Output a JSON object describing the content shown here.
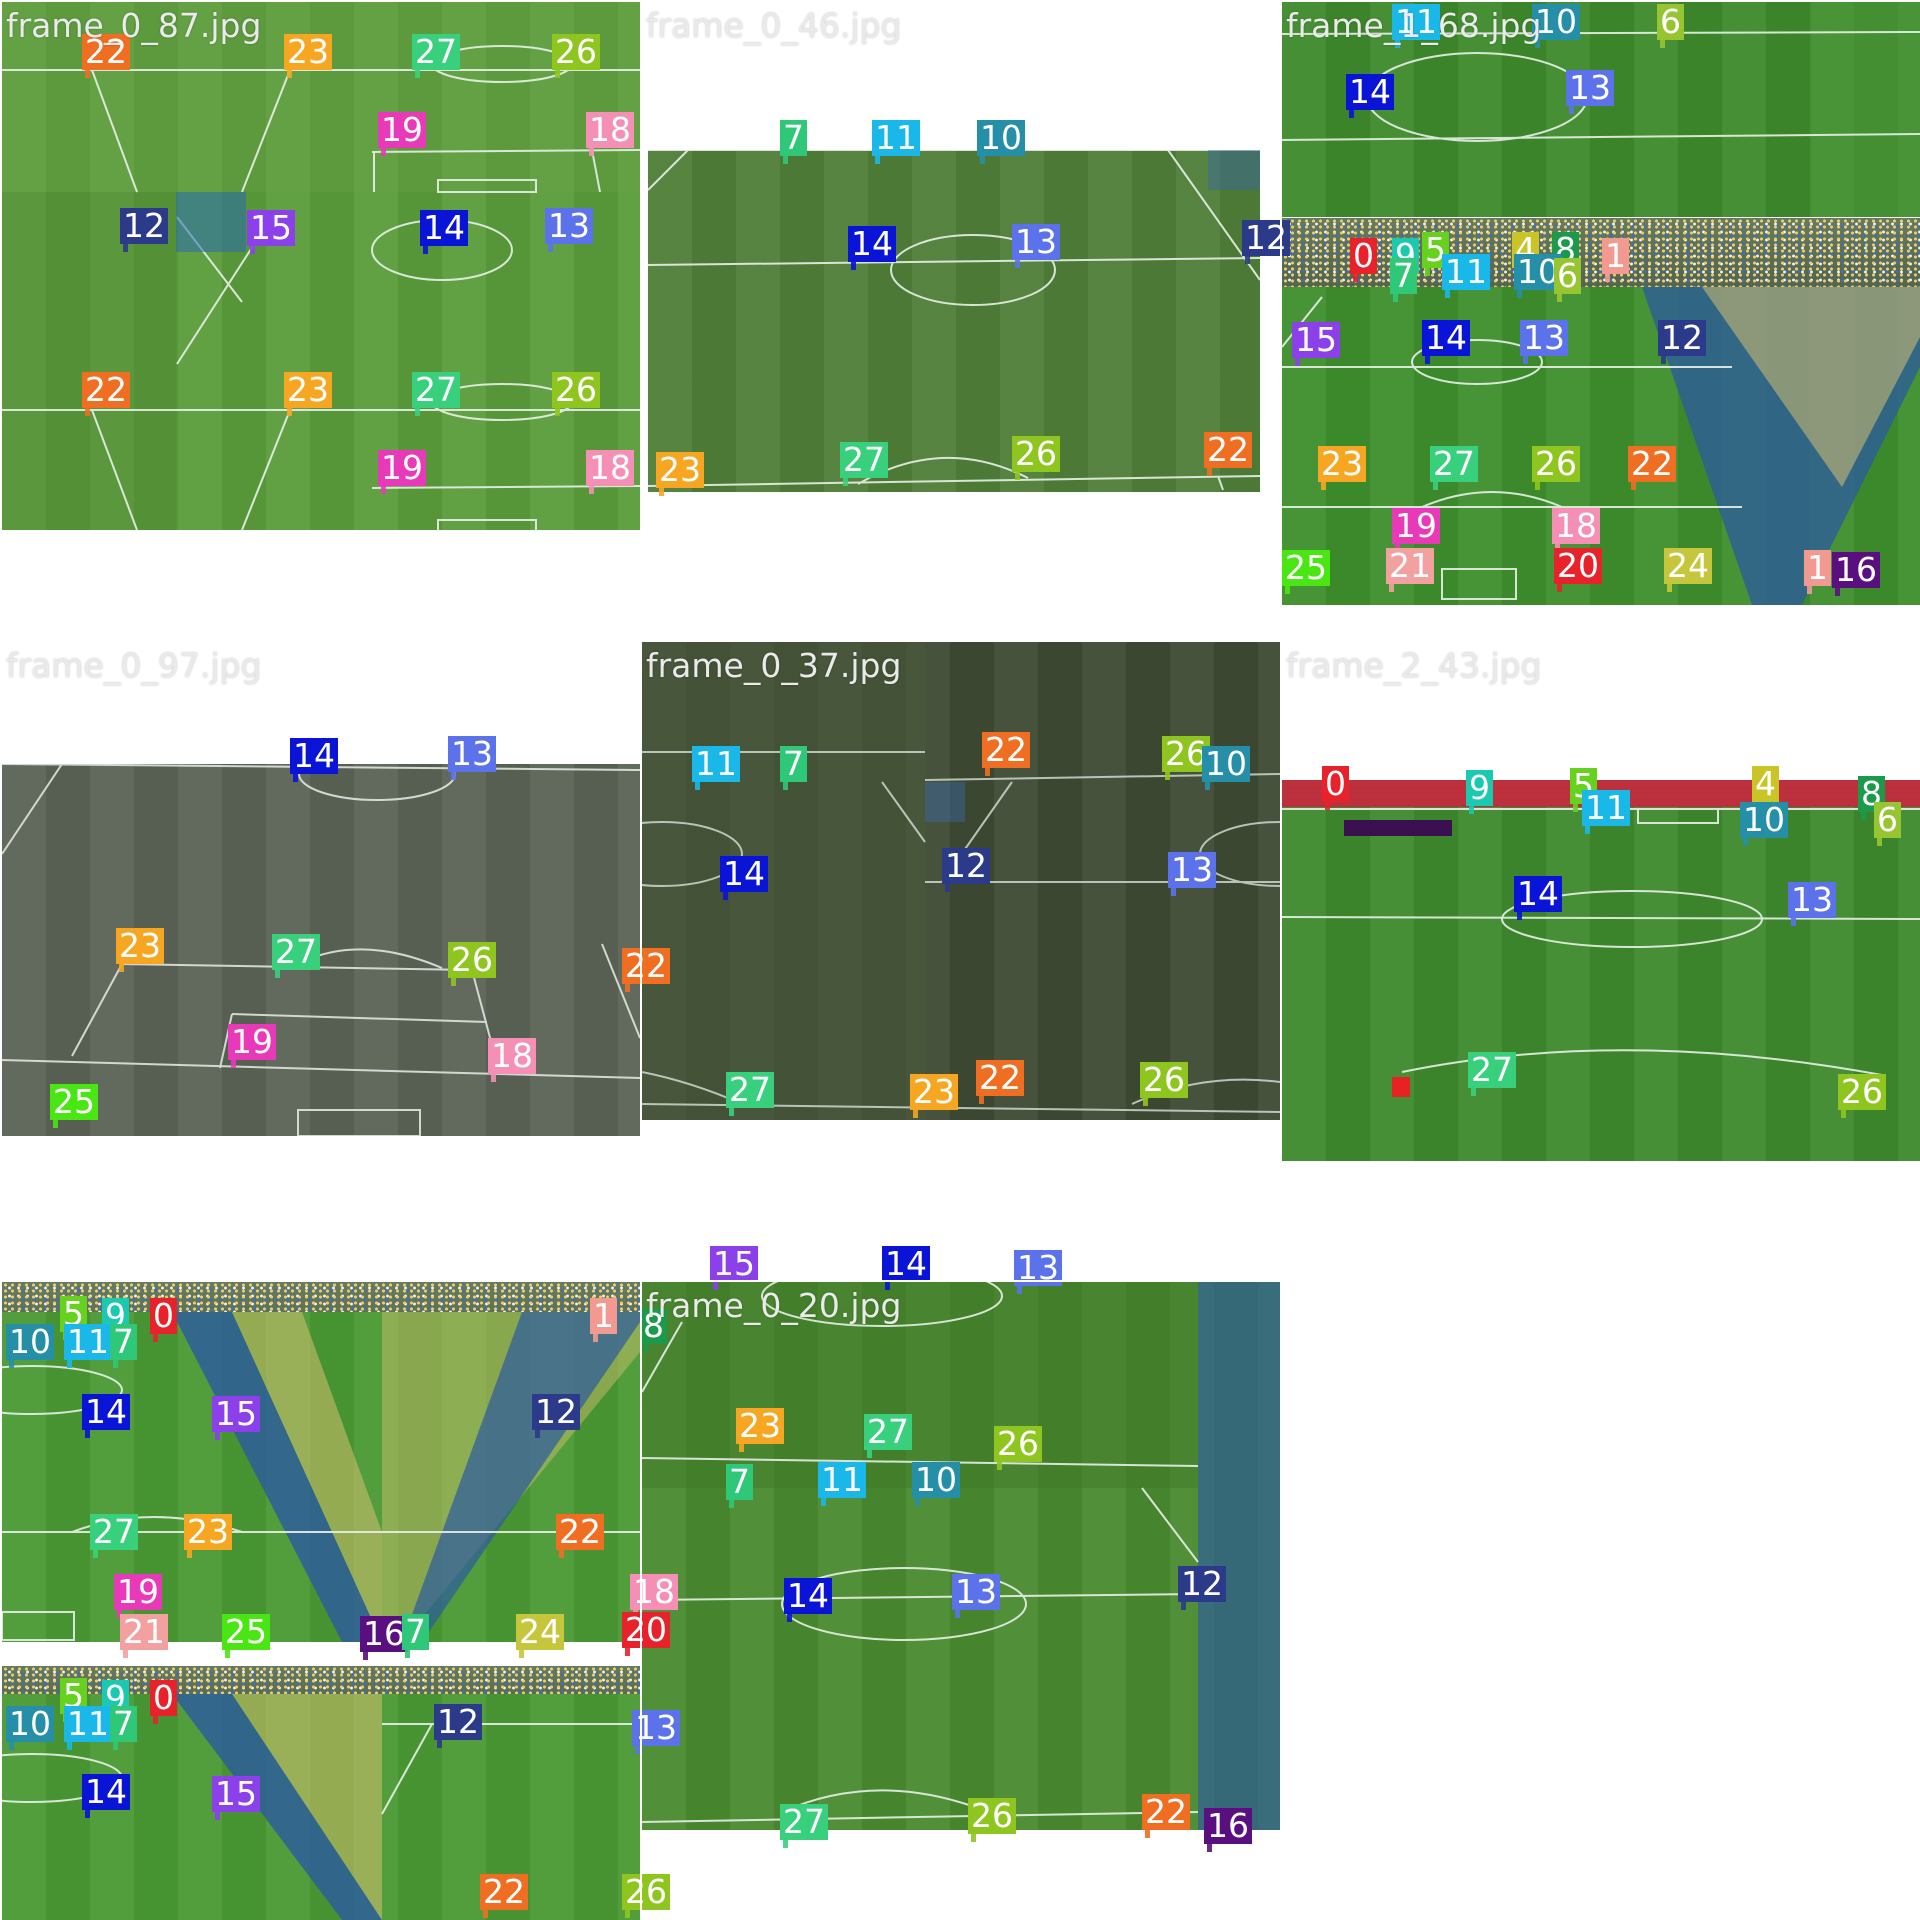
{
  "palette": {
    "0": "#e8222a",
    "1": "#f29a92",
    "4": "#c9c527",
    "5": "#66d11f",
    "6": "#97c531",
    "7": "#2ec878",
    "8": "#1a9a4a",
    "9": "#1ac9b0",
    "10": "#268fa8",
    "11": "#1ab8e8",
    "12": "#2b3b8a",
    "13": "#5b72ea",
    "14": "#0a14d6",
    "15": "#8b40ea",
    "16": "#5a0f80",
    "18": "#f58fb5",
    "19": "#e83ab8",
    "20": "#e8222a",
    "21": "#f2a0a0",
    "22": "#ef6e22",
    "23": "#f6a621",
    "24": "#c6c63c",
    "25": "#4ae614",
    "26": "#8fc51f",
    "27": "#39d07d"
  },
  "tiles": [
    {
      "id": "tile-1",
      "title": "frame_0_87.jpg",
      "bg": "#8a8a8a",
      "labels": [
        [
          "22",
          80,
          32
        ],
        [
          "23",
          282,
          32
        ],
        [
          "27",
          410,
          32
        ],
        [
          "26",
          550,
          32
        ],
        [
          "19",
          376,
          110
        ],
        [
          "18",
          584,
          110
        ],
        [
          "12",
          118,
          206
        ],
        [
          "15",
          245,
          208
        ],
        [
          "14",
          418,
          208
        ],
        [
          "13",
          543,
          206
        ],
        [
          "22",
          80,
          370
        ],
        [
          "23",
          282,
          370
        ],
        [
          "27",
          410,
          370
        ],
        [
          "26",
          550,
          370
        ],
        [
          "19",
          376,
          448
        ],
        [
          "18",
          584,
          448
        ]
      ]
    },
    {
      "id": "tile-2",
      "title": "frame_0_46.jpg",
      "bg": "#7c7c7c",
      "labels": [
        "7,138,118",
        "11,230,118",
        "10,335,118",
        "14,206,224",
        "13,370,222",
        "12,600,218",
        "23,14,450",
        "27,198,440",
        "26,370,434",
        "22,562,430"
      ]
    },
    {
      "id": "tile-3",
      "title": "frame_1_68.jpg",
      "bg": "#7a7a7a",
      "labels": [
        "11,110,2",
        "10,250,2",
        "6,375,2",
        "14,64,72",
        "13,284,68",
        "0,68,236",
        "9,110,236",
        "5,140,230",
        "4,230,230",
        "8,270,230",
        "1,320,236",
        "7,108,256",
        "11,160,252",
        "10,232,252",
        "6,272,256",
        "15,10,320",
        "14,140,318",
        "13,238,318",
        "12,376,318",
        "23,36,444",
        "27,148,444",
        "26,250,444",
        "22,346,444",
        "19,110,506",
        "18,270,506",
        "25,0,548",
        "21,104,546",
        "20,272,546",
        "24,382,546",
        "1,522,548",
        "16,550,550"
      ]
    },
    {
      "id": "tile-4",
      "title": "frame_0_97.jpg",
      "bg": "#6a6a6a",
      "labels": [
        "14,288,96",
        "13,446,94",
        "23,114,286",
        "27,270,292",
        "26,446,300",
        "22,620,306",
        "19,226,382",
        "18,486,396",
        "25,48,442"
      ]
    },
    {
      "id": "tile-5",
      "title": "frame_0_37.jpg",
      "bg": "#434343",
      "labels": [
        "11,50,104",
        "7,138,104",
        "22,340,90",
        "26,520,94",
        "10,560,104",
        "14,78,214",
        "12,300,206",
        "13,526,210",
        "27,84,430",
        "23,268,432",
        "22,334,418",
        "26,498,420"
      ]
    },
    {
      "id": "tile-6",
      "title": "frame_2_43.jpg",
      "bg": "#707070",
      "labels": [
        "0,40,124",
        "9,184,128",
        "5,288,126",
        "4,470,124",
        "8,576,134",
        "11,300,148",
        "10,458,160",
        "6,608,160",
        "14,232,234",
        "13,506,240",
        "27,186,410",
        "26,556,432"
      ]
    },
    {
      "id": "tile-7",
      "title": "",
      "bg": "#5f5f5f",
      "labels": [
        "5,58,14",
        "9,100,16",
        "0,148,16",
        "1,588,16",
        "8,638,26",
        "10,4,42",
        "11,62,42",
        "7,108,42",
        "14,80,112",
        "15,210,114",
        "12,530,112",
        "27,88,232",
        "23,182,232",
        "22,554,232",
        "19,112,292",
        "18,628,292",
        "21,118,332",
        "25,220,332",
        "16,358,334",
        "7,400,332",
        "24,514,332",
        "20,620,330",
        "5,58,396",
        "9,100,398",
        "0,148,398",
        "10,4,424",
        "11,62,424",
        "7,108,424",
        "12,432,422",
        "13,630,428",
        "14,80,492",
        "15,210,494",
        "22,478,592",
        "26,620,592"
      ]
    },
    {
      "id": "tile-8",
      "title": "frame_0_20.jpg",
      "bg": "#7a7a7a",
      "labels": [
        "23,94,126",
        "27,222,132",
        "26,352,144",
        "7,84,182",
        "11,176,180",
        "10,270,180",
        "14,142,296",
        "13,310,292",
        "12,536,284",
        "27,138,522",
        "26,326,516",
        "22,500,512",
        "16,562,526"
      ]
    }
  ],
  "overflow_labels": [
    [
      "15",
      710,
      1246
    ],
    [
      "14",
      882,
      1246
    ],
    [
      "13",
      1014,
      1250
    ]
  ]
}
